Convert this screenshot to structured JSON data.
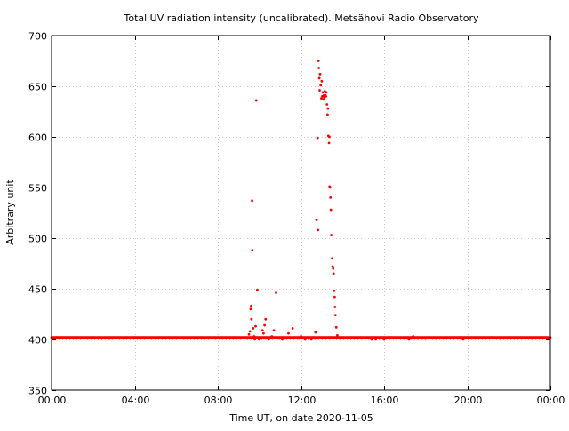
{
  "chart_data": {
    "type": "scatter",
    "title": "Total UV radiation intensity (uncalibrated). Metsähovi Radio Observatory",
    "xlabel": "Time UT, on date 2020-11-05",
    "ylabel": "Arbitrary unit",
    "x_unit": "hours UT",
    "xlim": [
      0,
      24
    ],
    "ylim": [
      350,
      700
    ],
    "x_ticks": [
      {
        "value": 0,
        "label": "00:00"
      },
      {
        "value": 4,
        "label": "04:00"
      },
      {
        "value": 8,
        "label": "08:00"
      },
      {
        "value": 12,
        "label": "12:00"
      },
      {
        "value": 16,
        "label": "16:00"
      },
      {
        "value": 20,
        "label": "20:00"
      },
      {
        "value": 24,
        "label": "00:00"
      }
    ],
    "y_ticks": [
      {
        "value": 350,
        "label": "350"
      },
      {
        "value": 400,
        "label": "400"
      },
      {
        "value": 450,
        "label": "450"
      },
      {
        "value": 500,
        "label": "500"
      },
      {
        "value": 550,
        "label": "550"
      },
      {
        "value": 600,
        "label": "600"
      },
      {
        "value": 650,
        "label": "650"
      },
      {
        "value": 700,
        "label": "700"
      }
    ],
    "grid": true,
    "baseline_level": 402,
    "series": [
      {
        "color": "#ff0000",
        "points": [
          [
            0.0,
            402
          ],
          [
            0.4,
            402
          ],
          [
            0.8,
            402
          ],
          [
            1.2,
            402
          ],
          [
            1.6,
            402
          ],
          [
            2.0,
            402
          ],
          [
            2.4,
            401
          ],
          [
            2.8,
            401
          ],
          [
            3.2,
            402
          ],
          [
            3.6,
            402
          ],
          [
            4.0,
            402
          ],
          [
            4.4,
            402
          ],
          [
            4.8,
            402
          ],
          [
            5.2,
            402
          ],
          [
            5.6,
            402
          ],
          [
            6.0,
            402
          ],
          [
            6.4,
            401
          ],
          [
            6.8,
            402
          ],
          [
            7.2,
            402
          ],
          [
            7.6,
            402
          ],
          [
            8.0,
            402
          ],
          [
            8.4,
            402
          ],
          [
            8.8,
            402
          ],
          [
            9.2,
            402
          ],
          [
            9.4,
            401
          ],
          [
            9.5,
            405
          ],
          [
            9.55,
            408
          ],
          [
            9.58,
            430
          ],
          [
            9.6,
            433
          ],
          [
            9.62,
            420
          ],
          [
            9.65,
            537
          ],
          [
            9.66,
            488
          ],
          [
            9.7,
            411
          ],
          [
            9.75,
            403
          ],
          [
            9.78,
            400
          ],
          [
            9.82,
            413
          ],
          [
            9.85,
            636
          ],
          [
            9.88,
            402
          ],
          [
            9.9,
            449
          ],
          [
            9.95,
            401
          ],
          [
            10.0,
            400
          ],
          [
            10.05,
            402
          ],
          [
            10.1,
            401
          ],
          [
            10.15,
            409
          ],
          [
            10.2,
            406
          ],
          [
            10.25,
            414
          ],
          [
            10.3,
            420
          ],
          [
            10.35,
            401
          ],
          [
            10.45,
            400
          ],
          [
            10.55,
            402
          ],
          [
            10.6,
            403
          ],
          [
            10.7,
            409
          ],
          [
            10.75,
            402
          ],
          [
            10.8,
            446
          ],
          [
            10.9,
            401
          ],
          [
            11.0,
            402
          ],
          [
            11.1,
            400
          ],
          [
            11.3,
            402
          ],
          [
            11.4,
            406
          ],
          [
            11.5,
            402
          ],
          [
            11.6,
            411
          ],
          [
            11.7,
            402
          ],
          [
            11.9,
            401
          ],
          [
            12.0,
            403
          ],
          [
            12.1,
            401
          ],
          [
            12.2,
            400
          ],
          [
            12.3,
            402
          ],
          [
            12.4,
            401
          ],
          [
            12.5,
            400
          ],
          [
            12.6,
            402
          ],
          [
            12.7,
            407
          ],
          [
            12.75,
            518
          ],
          [
            12.8,
            599
          ],
          [
            12.82,
            508
          ],
          [
            12.84,
            675
          ],
          [
            12.86,
            668
          ],
          [
            12.88,
            658
          ],
          [
            12.9,
            646
          ],
          [
            12.92,
            662
          ],
          [
            12.95,
            651
          ],
          [
            12.98,
            638
          ],
          [
            13.0,
            655
          ],
          [
            13.02,
            640
          ],
          [
            13.05,
            644
          ],
          [
            13.08,
            637
          ],
          [
            13.1,
            641
          ],
          [
            13.12,
            639
          ],
          [
            13.15,
            645
          ],
          [
            13.18,
            641
          ],
          [
            13.2,
            640
          ],
          [
            13.22,
            644
          ],
          [
            13.25,
            632
          ],
          [
            13.28,
            622
          ],
          [
            13.3,
            628
          ],
          [
            13.32,
            601
          ],
          [
            13.35,
            594
          ],
          [
            13.37,
            600
          ],
          [
            13.38,
            551
          ],
          [
            13.4,
            550
          ],
          [
            13.42,
            540
          ],
          [
            13.44,
            528
          ],
          [
            13.46,
            503
          ],
          [
            13.5,
            480
          ],
          [
            13.52,
            472
          ],
          [
            13.55,
            470
          ],
          [
            13.57,
            465
          ],
          [
            13.6,
            448
          ],
          [
            13.62,
            442
          ],
          [
            13.64,
            432
          ],
          [
            13.66,
            424
          ],
          [
            13.7,
            412
          ],
          [
            13.75,
            404
          ],
          [
            13.8,
            402
          ],
          [
            14.0,
            402
          ],
          [
            14.4,
            401
          ],
          [
            14.8,
            402
          ],
          [
            15.2,
            402
          ],
          [
            15.4,
            400
          ],
          [
            15.6,
            400
          ],
          [
            15.8,
            401
          ],
          [
            16.0,
            400
          ],
          [
            16.2,
            402
          ],
          [
            16.6,
            401
          ],
          [
            17.0,
            402
          ],
          [
            17.2,
            400
          ],
          [
            17.4,
            403
          ],
          [
            17.6,
            401
          ],
          [
            17.8,
            402
          ],
          [
            18.0,
            401
          ],
          [
            18.2,
            402
          ],
          [
            18.6,
            402
          ],
          [
            19.0,
            402
          ],
          [
            19.4,
            402
          ],
          [
            19.7,
            401
          ],
          [
            19.8,
            400
          ],
          [
            20.0,
            402
          ],
          [
            20.4,
            402
          ],
          [
            20.8,
            402
          ],
          [
            21.2,
            402
          ],
          [
            21.6,
            402
          ],
          [
            22.0,
            402
          ],
          [
            22.4,
            402
          ],
          [
            22.8,
            401
          ],
          [
            23.2,
            402
          ],
          [
            23.6,
            402
          ],
          [
            24.0,
            402
          ]
        ]
      }
    ]
  }
}
